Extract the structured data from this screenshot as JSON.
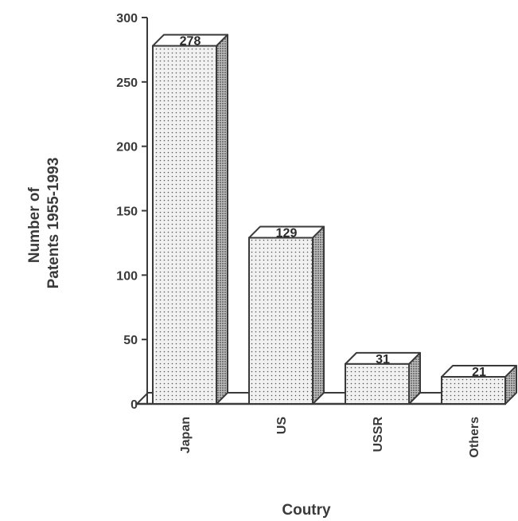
{
  "chart_data": {
    "type": "bar",
    "title": "",
    "xlabel": "Coutry",
    "ylabel_lines": [
      "Number of",
      "Patents 1955-1993"
    ],
    "categories": [
      "Japan",
      "US",
      "USSR",
      "Others"
    ],
    "values": [
      278,
      129,
      31,
      21
    ],
    "data_labels": [
      "278",
      "129",
      "31",
      "21"
    ],
    "ylim": [
      0,
      300
    ],
    "yticks": [
      0,
      50,
      100,
      150,
      200,
      250,
      300
    ],
    "grid": false,
    "legend": "none",
    "style": "3d-stippled",
    "colors": {
      "ink": "#3a3a3a",
      "bar_front": "#f1f1f1",
      "bar_side": "#a9a9a9"
    }
  }
}
